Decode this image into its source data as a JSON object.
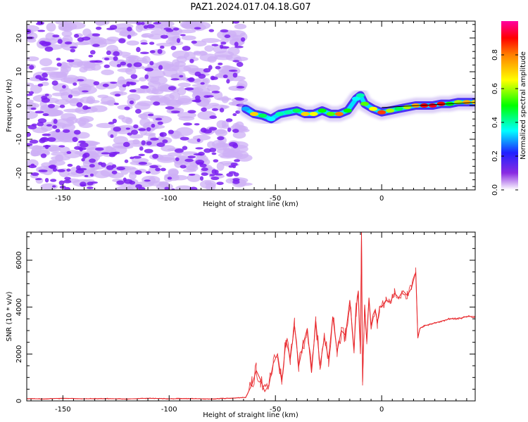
{
  "title": "PAZ1.2024.017.04.18.G07",
  "colors": {
    "blob": "#7a1ff0",
    "blob_light": "#cdb0f5",
    "snr_line": "#e8262a",
    "axis": "#000000"
  },
  "colorbar": {
    "label": "Normalized spectral amplitude",
    "ticks": [
      "0.0",
      "0.2",
      "0.4",
      "0.6",
      "0.8"
    ],
    "tick_values": [
      0.0,
      0.2,
      0.4,
      0.6,
      0.8
    ],
    "range": [
      0.0,
      1.0
    ]
  },
  "chart_data": [
    {
      "type": "heatmap",
      "title": "PAZ1.2024.017.04.18.G07",
      "xlabel": "Height of straight line (km)",
      "ylabel": "Frequency (Hz)",
      "xlim": [
        -167,
        44
      ],
      "ylim": [
        -25,
        25
      ],
      "xticks": [
        -150,
        -100,
        -50,
        0
      ],
      "xtick_labels": [
        "-150",
        "-100",
        "-50",
        "0"
      ],
      "yticks": [
        20,
        10,
        0,
        -10,
        -20
      ],
      "ytick_labels": [
        "20",
        "10",
        "0",
        "-10",
        "-20"
      ],
      "noise_region_x": [
        -167,
        -64
      ],
      "ridge": {
        "x": [
          -64,
          -60,
          -56,
          -52,
          -48,
          -44,
          -40,
          -36,
          -32,
          -28,
          -24,
          -20,
          -16,
          -12,
          -10,
          -8,
          -4,
          0,
          4,
          8,
          12,
          16,
          20,
          24,
          28,
          32,
          36,
          40,
          44
        ],
        "y": [
          -1,
          -2.5,
          -3,
          -4,
          -2.5,
          -2,
          -1.5,
          -2.5,
          -2.5,
          -1.5,
          -2.5,
          -2.5,
          -1.5,
          2,
          3,
          0.5,
          -1,
          -2,
          -1.5,
          -1,
          -0.5,
          0,
          0,
          0,
          0.5,
          0.5,
          1,
          1,
          1
        ],
        "amplitude": [
          0.3,
          0.7,
          0.45,
          0.35,
          0.4,
          0.4,
          0.45,
          0.7,
          0.65,
          0.5,
          0.55,
          0.8,
          0.5,
          0.35,
          0.4,
          0.55,
          0.65,
          0.85,
          0.6,
          0.45,
          0.6,
          0.75,
          0.9,
          0.92,
          0.9,
          0.5,
          0.6,
          0.75,
          0.7
        ]
      }
    },
    {
      "type": "line",
      "xlabel": "Height of straight line (km)",
      "ylabel": "SNR (10 * v/v)",
      "xlim": [
        -167,
        44
      ],
      "ylim": [
        0,
        7200
      ],
      "xticks": [
        -150,
        -100,
        -50,
        0
      ],
      "xtick_labels": [
        "-150",
        "-100",
        "-50",
        "0"
      ],
      "yticks": [
        0,
        2000,
        4000,
        6000
      ],
      "ytick_labels": [
        "0",
        "2000",
        "4000",
        "6000"
      ],
      "series": [
        {
          "x": [
            -167,
            -160,
            -150,
            -140,
            -130,
            -120,
            -110,
            -100,
            -90,
            -80,
            -70,
            -64,
            -61,
            -59,
            -57,
            -55,
            -53,
            -51,
            -49,
            -47,
            -45,
            -43,
            -41,
            -39,
            -37,
            -35,
            -33,
            -31,
            -29,
            -27,
            -25,
            -23,
            -21,
            -19,
            -17,
            -15,
            -13,
            -12,
            -11,
            -10,
            -9.5,
            -9,
            -8,
            -7,
            -6,
            -5,
            -4,
            -3,
            -2,
            -1,
            0,
            2,
            4,
            6,
            8,
            10,
            12,
            14,
            16,
            17,
            18,
            20,
            24,
            28,
            32,
            36,
            40,
            44
          ],
          "y": [
            100,
            80,
            110,
            90,
            100,
            80,
            110,
            90,
            100,
            80,
            120,
            150,
            700,
            1300,
            900,
            400,
            700,
            1600,
            2000,
            800,
            2600,
            1800,
            3200,
            1500,
            2400,
            3100,
            1200,
            3400,
            1500,
            2700,
            1800,
            3600,
            2100,
            3000,
            2800,
            4300,
            2200,
            3900,
            4700,
            2000,
            7200,
            800,
            4100,
            2500,
            4400,
            3200,
            3700,
            3900,
            3300,
            4000,
            4000,
            4300,
            4200,
            4600,
            4400,
            4700,
            4500,
            4800,
            5500,
            2700,
            3100,
            3200,
            3300,
            3400,
            3500,
            3500,
            3600,
            3600
          ]
        }
      ]
    }
  ]
}
